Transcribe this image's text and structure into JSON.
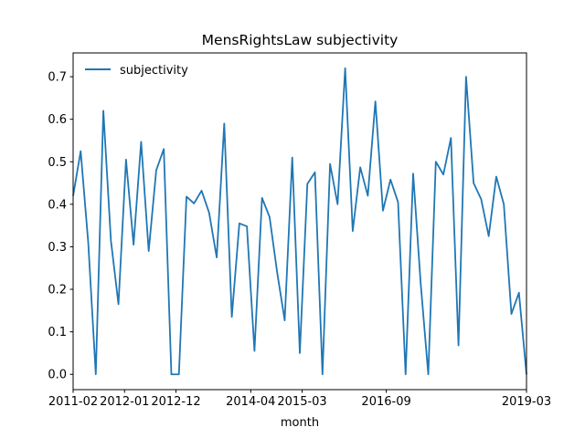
{
  "chart_data": {
    "type": "line",
    "title": "MensRightsLaw subjectivity",
    "xlabel": "month",
    "ylabel": "",
    "x_tick_labels": [
      "2011-02",
      "2012-01",
      "2012-12",
      "2014-04",
      "2015-03",
      "2016-09",
      "2019-03"
    ],
    "x_range": [
      "2011-02",
      "2019-03"
    ],
    "ylim": [
      -0.036,
      0.756
    ],
    "y_ticks": [
      0.0,
      0.1,
      0.2,
      0.3,
      0.4,
      0.5,
      0.6,
      0.7
    ],
    "y_tick_labels": [
      "0.0",
      "0.1",
      "0.2",
      "0.3",
      "0.4",
      "0.5",
      "0.6",
      "0.7"
    ],
    "grid": false,
    "legend_position": "top-left",
    "series": [
      {
        "name": "subjectivity",
        "color": "#1f77b4",
        "values": [
          0.42,
          0.525,
          0.31,
          0.0,
          0.62,
          0.315,
          0.165,
          0.505,
          0.305,
          0.547,
          0.29,
          0.48,
          0.53,
          0.0,
          0.0,
          0.418,
          0.402,
          0.432,
          0.38,
          0.275,
          0.59,
          0.135,
          0.355,
          0.348,
          0.055,
          0.415,
          0.37,
          0.24,
          0.127,
          0.51,
          0.05,
          0.448,
          0.475,
          0.0,
          0.495,
          0.4,
          0.72,
          0.337,
          0.487,
          0.42,
          0.642,
          0.385,
          0.458,
          0.405,
          0.0,
          0.472,
          0.213,
          0.0,
          0.5,
          0.47,
          0.556,
          0.068,
          0.7,
          0.45,
          0.412,
          0.325,
          0.465,
          0.4,
          0.142,
          0.192,
          0.0
        ]
      }
    ]
  }
}
